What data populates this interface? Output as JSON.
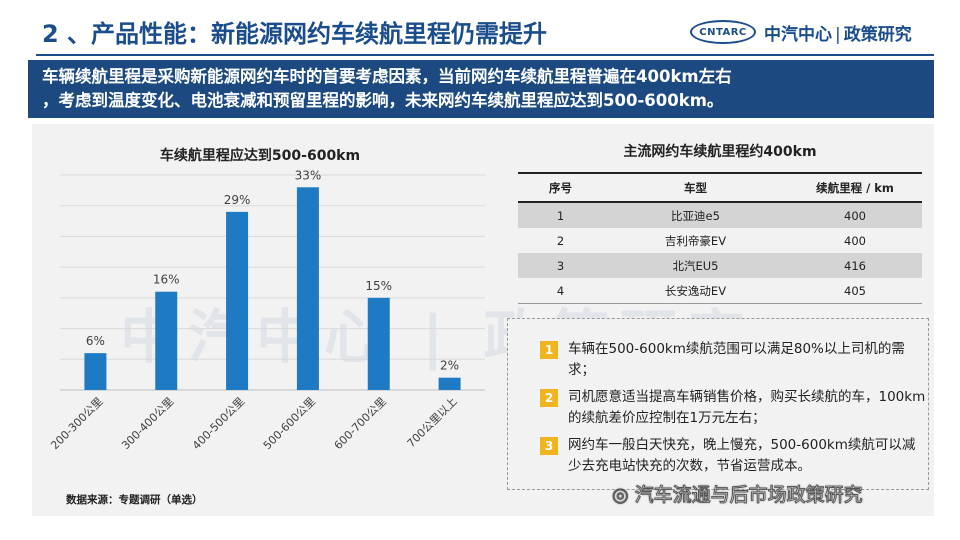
{
  "header": {
    "title": "2 、产品性能：新能源网约车续航里程仍需提升",
    "logo_text": "CNTARC",
    "brand_left": "中汽中心",
    "brand_sep": "|",
    "brand_right": "政策研究"
  },
  "banner": {
    "line1": "车辆续航里程是采购新能源网约车时的首要考虑因素，当前网约车续航里程普遍在400km左右",
    "line2": "，考虑到温度变化、电池衰减和预留里程的影响，未来网约车续航里程应达到500-600km。"
  },
  "chart_data": {
    "type": "bar",
    "title": "车续航里程应达到500-600km",
    "categories": [
      "200-300公里",
      "300-400公里",
      "400-500公里",
      "500-600公里",
      "600-700公里",
      "700公里以上"
    ],
    "values": [
      6,
      16,
      29,
      33,
      15,
      2
    ],
    "data_labels": [
      "6%",
      "16%",
      "29%",
      "33%",
      "15%",
      "2%"
    ],
    "ylim": [
      0,
      35
    ],
    "grid": true,
    "bar_color": "#1f7ac4"
  },
  "source": "数据来源：专题调研（单选）",
  "table": {
    "title": "主流网约车续航里程约400km",
    "headers": [
      "序号",
      "车型",
      "续航里程 / km"
    ],
    "rows": [
      [
        "1",
        "比亚迪e5",
        "400"
      ],
      [
        "2",
        "吉利帝豪EV",
        "400"
      ],
      [
        "3",
        "北汽EU5",
        "416"
      ],
      [
        "4",
        "长安逸动EV",
        "405"
      ]
    ]
  },
  "notes": [
    {
      "num": "1",
      "text": "车辆在500-600km续航范围可以满足80%以上司机的需求；"
    },
    {
      "num": "2",
      "text": "司机愿意适当提高车辆销售价格，购买长续航的车，100km的续航差价应控制在1万元左右；"
    },
    {
      "num": "3",
      "text": "网约车一般白天快充，晚上慢充，500-600km续航可以减少去充电站快充的次数，节省运营成本。"
    }
  ],
  "watermark": "中汽中心 | 政策研究",
  "footer": {
    "wechat": "汽车流通与后市场政策研究"
  },
  "colors": {
    "title_blue": "#1b4d8c",
    "banner_blue": "#1c4a80",
    "bar_blue": "#1f7ac4",
    "note_gold": "#f0b51e"
  }
}
